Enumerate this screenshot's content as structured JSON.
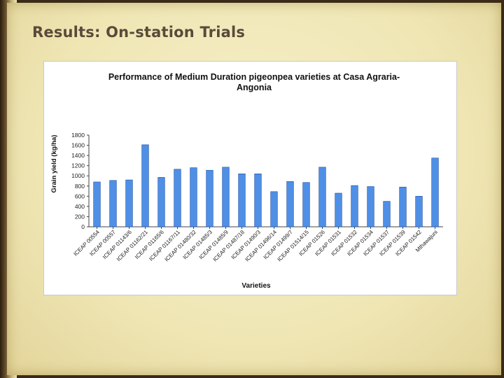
{
  "slide": {
    "title": "Results: On-station Trials"
  },
  "chart_data": {
    "type": "bar",
    "title": "Performance of Medium Duration pigeonpea varieties at Casa Agraria- Angonia",
    "title_lines": [
      "Performance of Medium Duration pigeonpea varieties at Casa Agraria-",
      "Angonia"
    ],
    "xlabel": "Varieties",
    "ylabel": "Grain yield (kg/ha)",
    "ylim": [
      0,
      1800
    ],
    "yticks": [
      0,
      200,
      400,
      600,
      800,
      1000,
      1200,
      1400,
      1600,
      1800
    ],
    "grid": false,
    "legend": "none",
    "bar_color": "#4f8fe6",
    "bar_edge_color": "#1f4f9e",
    "categories": [
      "ICEAP 00554",
      "ICEAP 00557",
      "ICEAP 01143/6",
      "ICEAP 01162/21",
      "ICEAP 01165/6",
      "ICEAP 01167/11",
      "ICEAP 01480/32",
      "ICEAP 01485/3",
      "ICEAP 01485/9",
      "ICEAP 01487/18",
      "ICEAP 01490/3",
      "ICEAP 01496/14",
      "ICEAP 01499/7",
      "ICEAP 01514/15",
      "ICEAP 01526",
      "ICEAP 01531",
      "ICEAP 01532",
      "ICEAP 01534",
      "ICEAP 01537",
      "ICEAP 01539",
      "ICEAP 01542",
      "Mthawajuni"
    ],
    "values": [
      880,
      910,
      920,
      1610,
      970,
      1130,
      1160,
      1110,
      1170,
      1040,
      1040,
      690,
      890,
      870,
      1170,
      660,
      810,
      790,
      500,
      780,
      600,
      1350
    ]
  }
}
